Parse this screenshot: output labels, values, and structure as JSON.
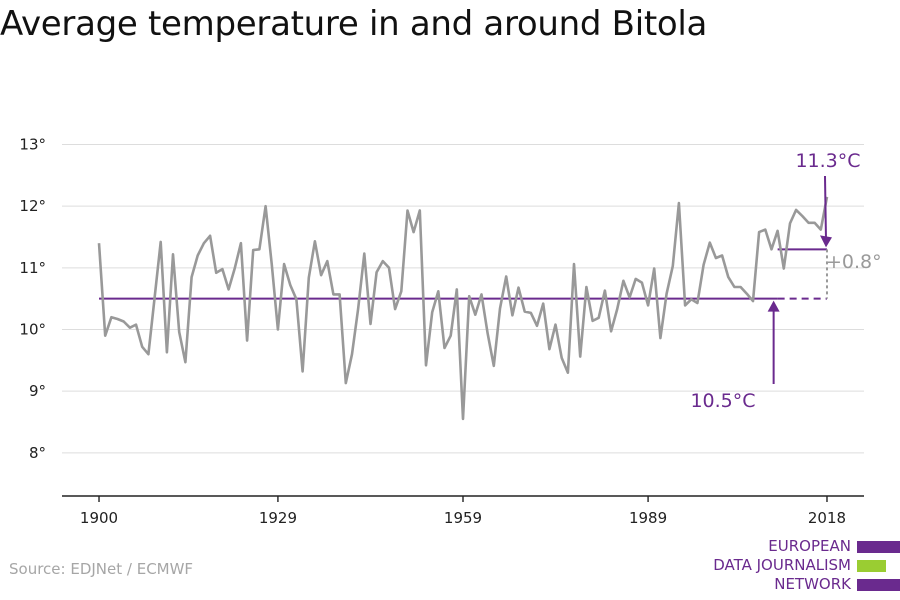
{
  "title": "Average temperature in and around Bitola",
  "source": "Source: EDJNet / ECMWF",
  "logo": {
    "lines": [
      "EUROPEAN",
      "DATA JOURNALISM",
      "NETWORK"
    ]
  },
  "colors": {
    "series": "#999999",
    "accent": "#6a2a8e",
    "logo_green": "#9acd32",
    "grid": "#dddddd",
    "axis": "#222222"
  },
  "chart_data": {
    "type": "line",
    "title": "Average temperature in and around Bitola",
    "xlabel": "",
    "ylabel": "",
    "x_ticks": [
      1900,
      1929,
      1959,
      1989,
      2018
    ],
    "y_ticks": [
      8,
      9,
      10,
      11,
      12,
      13
    ],
    "y_tick_labels": [
      "8°",
      "9°",
      "10°",
      "11°",
      "12°",
      "13°"
    ],
    "xlim": [
      1894,
      2024
    ],
    "ylim": [
      7.3,
      13.3
    ],
    "grid": true,
    "series": [
      {
        "x": [
          1900,
          1901,
          1902,
          1903,
          1904,
          1905,
          1906,
          1907,
          1908,
          1909,
          1910,
          1911,
          1912,
          1913,
          1914,
          1915,
          1916,
          1917,
          1918,
          1919,
          1920,
          1921,
          1922,
          1923,
          1924,
          1925,
          1926,
          1927,
          1928,
          1929,
          1930,
          1931,
          1932,
          1933,
          1934,
          1935,
          1936,
          1937,
          1938,
          1939,
          1940,
          1941,
          1942,
          1943,
          1944,
          1945,
          1946,
          1947,
          1948,
          1949,
          1950,
          1951,
          1952,
          1953,
          1954,
          1955,
          1956,
          1957,
          1958,
          1959,
          1960,
          1961,
          1962,
          1963,
          1964,
          1965,
          1966,
          1967,
          1968,
          1969,
          1970,
          1971,
          1972,
          1973,
          1974,
          1975,
          1976,
          1977,
          1978,
          1979,
          1980,
          1981,
          1982,
          1983,
          1984,
          1985,
          1986,
          1987,
          1988,
          1989,
          1990,
          1991,
          1992,
          1993,
          1994,
          1995,
          1996,
          1997,
          1998,
          1999,
          2000,
          2001,
          2002,
          2003,
          2004,
          2005,
          2006,
          2007,
          2008,
          2009,
          2010,
          2011,
          2012,
          2013,
          2014,
          2015,
          2016,
          2017,
          2018
        ],
        "values": [
          11.4,
          9.9,
          10.2,
          10.17,
          10.13,
          10.03,
          10.08,
          9.72,
          9.6,
          10.5,
          11.42,
          9.63,
          11.22,
          9.96,
          9.47,
          10.85,
          11.2,
          11.4,
          11.52,
          10.92,
          10.98,
          10.65,
          10.99,
          11.4,
          9.82,
          11.29,
          11.3,
          12.0,
          11.05,
          10.0,
          11.06,
          10.72,
          10.49,
          9.32,
          10.84,
          11.43,
          10.88,
          11.11,
          10.57,
          10.57,
          9.13,
          9.6,
          10.33,
          11.23,
          10.09,
          10.93,
          11.11,
          11.0,
          10.33,
          10.62,
          11.93,
          11.58,
          11.93,
          9.42,
          10.28,
          10.62,
          9.7,
          9.9,
          10.65,
          8.55,
          10.54,
          10.24,
          10.57,
          9.93,
          9.41,
          10.34,
          10.86,
          10.23,
          10.68,
          10.29,
          10.27,
          10.06,
          10.42,
          9.68,
          10.08,
          9.54,
          9.3,
          11.06,
          9.56,
          10.69,
          10.14,
          10.19,
          10.63,
          9.97,
          10.33,
          10.79,
          10.52,
          10.82,
          10.76,
          10.39,
          10.99,
          9.86,
          10.58,
          11.03,
          12.05,
          10.39,
          10.49,
          10.43,
          11.05,
          11.41,
          11.16,
          11.2,
          10.85,
          10.69,
          10.69,
          10.58,
          10.46,
          11.58,
          11.62,
          11.3,
          11.6,
          10.99,
          11.72,
          11.94,
          11.84,
          11.73,
          11.73,
          11.62,
          12.15
        ]
      }
    ],
    "reference": {
      "baseline": 10.5,
      "recent": 11.3,
      "recent_start": 2010
    },
    "annotations": [
      "11.3°C",
      "10.5°C",
      "+0.8°"
    ]
  }
}
